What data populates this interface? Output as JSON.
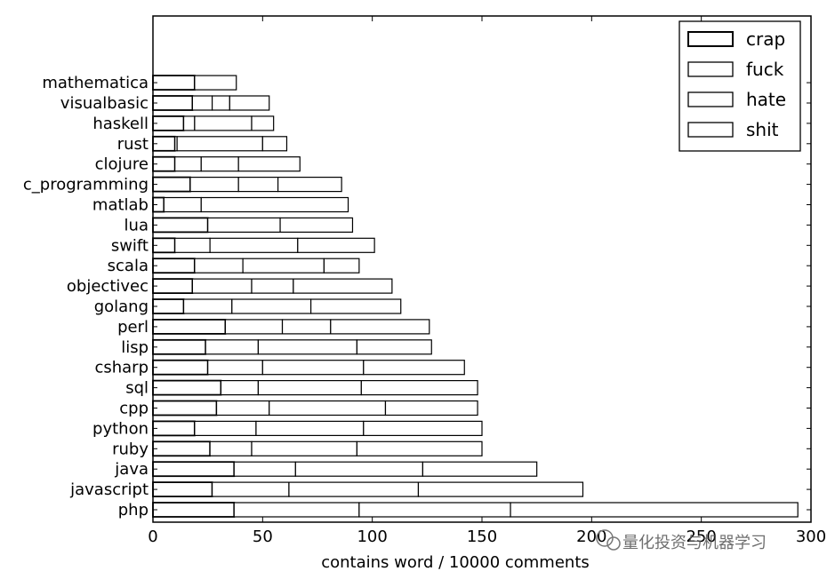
{
  "chart_data": {
    "type": "bar",
    "orientation": "horizontal",
    "stacked": true,
    "title": "",
    "xlabel": "contains word / 10000 comments",
    "ylabel": "",
    "xlim": [
      0,
      300
    ],
    "xticks": [
      0,
      50,
      100,
      150,
      200,
      250,
      300
    ],
    "xtick_labels": [
      "0",
      "50",
      "100",
      "150",
      "200",
      "250",
      "300"
    ],
    "grid": false,
    "legend_position": "top-right",
    "categories": [
      "php",
      "javascript",
      "java",
      "ruby",
      "python",
      "cpp",
      "sql",
      "csharp",
      "lisp",
      "perl",
      "golang",
      "objectivec",
      "scala",
      "swift",
      "lua",
      "matlab",
      "c_programming",
      "clojure",
      "rust",
      "haskell",
      "visualbasic",
      "mathematica"
    ],
    "series": [
      {
        "name": "crap",
        "values": [
          37,
          27,
          37,
          26,
          19,
          29,
          31,
          25,
          24,
          33,
          14,
          18,
          19,
          10,
          25,
          5,
          17,
          10,
          10,
          14,
          18,
          19
        ]
      },
      {
        "name": "fuck",
        "values": [
          57,
          35,
          28,
          19,
          28,
          24,
          17,
          25,
          24,
          26,
          22,
          27,
          22,
          16,
          0,
          17,
          22,
          12,
          1,
          5,
          9,
          0
        ]
      },
      {
        "name": "hate",
        "values": [
          69,
          59,
          58,
          48,
          49,
          53,
          47,
          46,
          45,
          22,
          36,
          19,
          37,
          40,
          33,
          0,
          18,
          17,
          39,
          26,
          8,
          19
        ]
      },
      {
        "name": "shit",
        "values": [
          131,
          75,
          52,
          57,
          54,
          42,
          53,
          46,
          34,
          45,
          41,
          45,
          16,
          35,
          33,
          67,
          29,
          28,
          11,
          10,
          18,
          0
        ]
      }
    ]
  },
  "watermark": {
    "text": "量化投资与机器学习",
    "icon": "wechat-icon"
  }
}
